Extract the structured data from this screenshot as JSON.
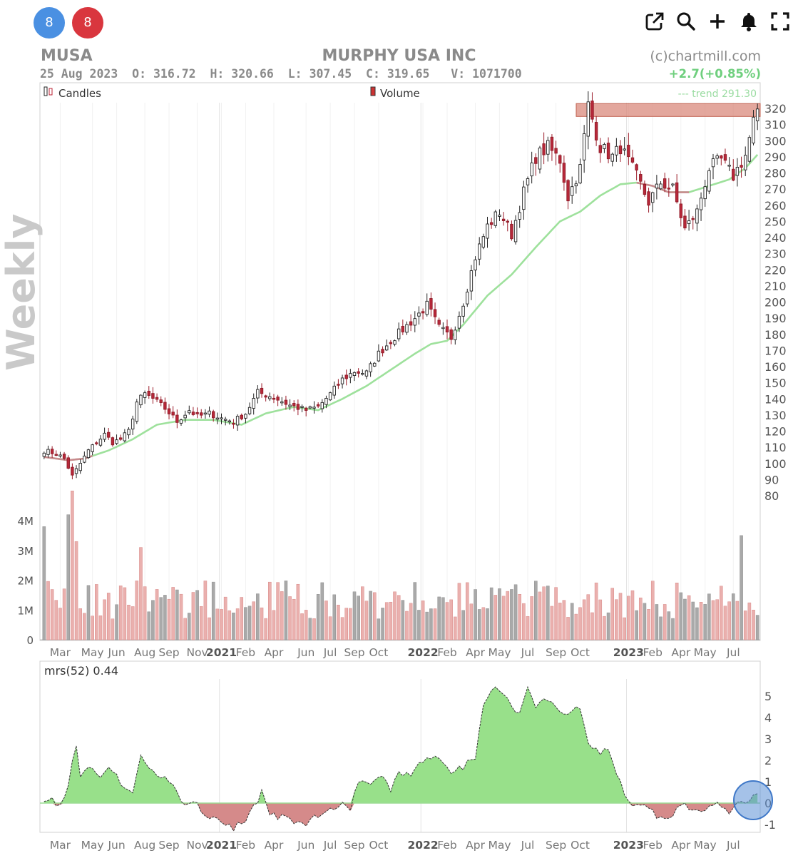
{
  "header": {
    "badge_left": "8",
    "badge_right": "8",
    "ticker": "MUSA",
    "company": "MURPHY USA INC",
    "source": "(c)chartmill.com",
    "date": "25 Aug 2023",
    "open_label": "O:",
    "open": "316.72",
    "high_label": "H:",
    "high": "320.66",
    "low_label": "L:",
    "low": "307.45",
    "close_label": "C:",
    "close": "319.65",
    "volume_label": "V:",
    "volume": "1071700",
    "change": "+2.7(+0.85%)"
  },
  "toolbar": {
    "icons": [
      "external-link-icon",
      "search-icon",
      "plus-icon",
      "bell-icon",
      "fullscreen-icon"
    ]
  },
  "chart_data": [
    {
      "type": "candlestick",
      "side_label": "Weekly",
      "legend": [
        "Candles",
        "Volume"
      ],
      "trend_label": "--- trend 291.30",
      "ylim": [
        70,
        322
      ],
      "y_ticks": [
        80,
        90,
        100,
        110,
        120,
        130,
        140,
        150,
        160,
        170,
        180,
        190,
        200,
        210,
        220,
        230,
        240,
        250,
        260,
        270,
        280,
        290,
        300,
        310,
        320
      ],
      "resistance_zone": [
        315,
        323
      ],
      "x_labels": [
        {
          "t": "Mar",
          "w": 4
        },
        {
          "t": "May",
          "w": 12
        },
        {
          "t": "Jun",
          "w": 18
        },
        {
          "t": "Aug",
          "w": 25
        },
        {
          "t": "Sep",
          "w": 31
        },
        {
          "t": "Nov",
          "w": 38
        },
        {
          "t": "2021",
          "w": 44,
          "bold": true
        },
        {
          "t": "Feb",
          "w": 50
        },
        {
          "t": "Apr",
          "w": 57
        },
        {
          "t": "Jun",
          "w": 65
        },
        {
          "t": "Jul",
          "w": 71
        },
        {
          "t": "Sep",
          "w": 77
        },
        {
          "t": "Oct",
          "w": 83
        },
        {
          "t": "2022",
          "w": 94,
          "bold": true
        },
        {
          "t": "Feb",
          "w": 100
        },
        {
          "t": "Apr",
          "w": 107
        },
        {
          "t": "May",
          "w": 113
        },
        {
          "t": "Jul",
          "w": 120
        },
        {
          "t": "Sep",
          "w": 127
        },
        {
          "t": "Oct",
          "w": 133
        },
        {
          "t": "2023",
          "w": 145,
          "bold": true
        },
        {
          "t": "Feb",
          "w": 151
        },
        {
          "t": "Apr",
          "w": 158
        },
        {
          "t": "May",
          "w": 164
        },
        {
          "t": "Jul",
          "w": 171
        }
      ],
      "weeks": 178,
      "close_anchors": [
        [
          0,
          108
        ],
        [
          3,
          106
        ],
        [
          5,
          103
        ],
        [
          7,
          92
        ],
        [
          9,
          100
        ],
        [
          11,
          108
        ],
        [
          13,
          113
        ],
        [
          15,
          118
        ],
        [
          17,
          113
        ],
        [
          19,
          115
        ],
        [
          21,
          120
        ],
        [
          23,
          138
        ],
        [
          25,
          143
        ],
        [
          27,
          140
        ],
        [
          30,
          134
        ],
        [
          33,
          126
        ],
        [
          36,
          133
        ],
        [
          38,
          129
        ],
        [
          41,
          131
        ],
        [
          44,
          128
        ],
        [
          47,
          126
        ],
        [
          50,
          131
        ],
        [
          53,
          144
        ],
        [
          57,
          141
        ],
        [
          61,
          136
        ],
        [
          65,
          133
        ],
        [
          68,
          135
        ],
        [
          71,
          143
        ],
        [
          74,
          152
        ],
        [
          77,
          157
        ],
        [
          80,
          156
        ],
        [
          83,
          168
        ],
        [
          86,
          176
        ],
        [
          89,
          183
        ],
        [
          92,
          190
        ],
        [
          95,
          198
        ],
        [
          98,
          184
        ],
        [
          101,
          178
        ],
        [
          104,
          200
        ],
        [
          107,
          228
        ],
        [
          110,
          247
        ],
        [
          113,
          256
        ],
        [
          116,
          242
        ],
        [
          119,
          268
        ],
        [
          122,
          290
        ],
        [
          125,
          296
        ],
        [
          128,
          288
        ],
        [
          130,
          265
        ],
        [
          133,
          283
        ],
        [
          135,
          322
        ],
        [
          138,
          296
        ],
        [
          141,
          290
        ],
        [
          143,
          296
        ],
        [
          147,
          278
        ],
        [
          150,
          262
        ],
        [
          153,
          274
        ],
        [
          156,
          270
        ],
        [
          159,
          245
        ],
        [
          162,
          256
        ],
        [
          165,
          283
        ],
        [
          168,
          288
        ],
        [
          171,
          278
        ],
        [
          174,
          291
        ],
        [
          176,
          312
        ],
        [
          177,
          319.65
        ]
      ],
      "trend_anchors": [
        [
          0,
          104
        ],
        [
          6,
          102
        ],
        [
          10,
          103
        ],
        [
          16,
          108
        ],
        [
          22,
          115
        ],
        [
          28,
          124
        ],
        [
          35,
          127
        ],
        [
          42,
          127
        ],
        [
          49,
          124
        ],
        [
          55,
          131
        ],
        [
          62,
          135
        ],
        [
          68,
          133
        ],
        [
          74,
          140
        ],
        [
          80,
          148
        ],
        [
          86,
          158
        ],
        [
          92,
          168
        ],
        [
          96,
          174
        ],
        [
          100,
          176
        ],
        [
          104,
          186
        ],
        [
          110,
          204
        ],
        [
          116,
          217
        ],
        [
          122,
          234
        ],
        [
          128,
          250
        ],
        [
          133,
          256
        ],
        [
          138,
          266
        ],
        [
          143,
          273
        ],
        [
          147,
          274
        ],
        [
          151,
          272
        ],
        [
          155,
          268
        ],
        [
          160,
          268
        ],
        [
          165,
          272
        ],
        [
          170,
          276
        ],
        [
          174,
          283
        ],
        [
          177,
          291.3
        ]
      ]
    },
    {
      "type": "bar",
      "name": "Volume",
      "ylim": [
        0,
        5000000
      ],
      "y_ticks": [
        "0",
        "1M",
        "2M",
        "3M",
        "4M"
      ],
      "notable_values": [
        [
          0,
          3800000
        ],
        [
          6,
          4200000
        ],
        [
          7,
          5000000
        ],
        [
          8,
          3300000
        ],
        [
          24,
          3100000
        ],
        [
          173,
          3500000
        ]
      ]
    },
    {
      "type": "area",
      "name": "mrs(52)",
      "legend": "mrs(52) 0.44",
      "ylim": [
        -1.4,
        5.9
      ],
      "y_ticks": [
        5,
        4,
        3,
        2,
        1,
        0,
        -1
      ],
      "anchors": [
        [
          0,
          0.25
        ],
        [
          2,
          0.1
        ],
        [
          4,
          -0.1
        ],
        [
          6,
          0.8
        ],
        [
          7,
          2.0
        ],
        [
          8,
          2.7
        ],
        [
          9,
          1.1
        ],
        [
          11,
          1.8
        ],
        [
          13,
          1.5
        ],
        [
          14,
          1.1
        ],
        [
          16,
          1.8
        ],
        [
          18,
          1.3
        ],
        [
          20,
          0.6
        ],
        [
          22,
          0.5
        ],
        [
          24,
          2.1
        ],
        [
          26,
          1.8
        ],
        [
          28,
          1.2
        ],
        [
          30,
          1.4
        ],
        [
          33,
          0.5
        ],
        [
          35,
          -0.2
        ],
        [
          38,
          -0.05
        ],
        [
          41,
          -0.7
        ],
        [
          44,
          -0.9
        ],
        [
          47,
          -1.2
        ],
        [
          50,
          -0.8
        ],
        [
          52,
          -0.2
        ],
        [
          54,
          0.5
        ],
        [
          56,
          -0.4
        ],
        [
          59,
          -0.7
        ],
        [
          62,
          -0.8
        ],
        [
          65,
          -1.0
        ],
        [
          68,
          -0.6
        ],
        [
          71,
          -0.3
        ],
        [
          74,
          0.05
        ],
        [
          76,
          -0.2
        ],
        [
          78,
          1.1
        ],
        [
          81,
          1.0
        ],
        [
          84,
          1.2
        ],
        [
          86,
          0.6
        ],
        [
          88,
          1.3
        ],
        [
          91,
          1.4
        ],
        [
          94,
          1.9
        ],
        [
          97,
          2.1
        ],
        [
          99,
          1.8
        ],
        [
          101,
          1.4
        ],
        [
          104,
          1.7
        ],
        [
          107,
          2.2
        ],
        [
          109,
          4.6
        ],
        [
          112,
          5.5
        ],
        [
          115,
          4.8
        ],
        [
          118,
          4.2
        ],
        [
          120,
          5.6
        ],
        [
          122,
          4.6
        ],
        [
          125,
          4.8
        ],
        [
          128,
          4.1
        ],
        [
          131,
          4.3
        ],
        [
          133,
          4.4
        ],
        [
          135,
          2.7
        ],
        [
          138,
          2.3
        ],
        [
          140,
          2.5
        ],
        [
          142,
          1.4
        ],
        [
          144,
          0.4
        ],
        [
          146,
          -0.2
        ],
        [
          149,
          0.05
        ],
        [
          152,
          -0.6
        ],
        [
          155,
          -0.8
        ],
        [
          157,
          -0.2
        ],
        [
          159,
          0.0
        ],
        [
          161,
          -0.4
        ],
        [
          164,
          -0.5
        ],
        [
          166,
          0.05
        ],
        [
          168,
          -0.1
        ],
        [
          170,
          -0.45
        ],
        [
          172,
          0.2
        ],
        [
          174,
          0.05
        ],
        [
          176,
          0.44
        ]
      ]
    }
  ]
}
